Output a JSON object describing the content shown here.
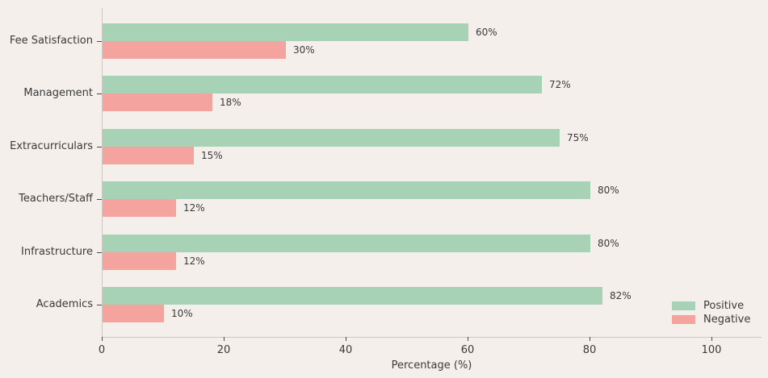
{
  "chart_data": {
    "type": "bar",
    "orientation": "horizontal",
    "title": "",
    "xlabel": "Percentage (%)",
    "ylabel": "",
    "categories": [
      "Fee Satisfaction",
      "Management",
      "Extracurriculars",
      "Teachers/Staff",
      "Infrastructure",
      "Academics"
    ],
    "series": [
      {
        "name": "Positive",
        "color": "#a7d2b6",
        "values": [
          60,
          72,
          75,
          80,
          80,
          82
        ]
      },
      {
        "name": "Negative",
        "color": "#f4a39e",
        "values": [
          30,
          18,
          15,
          12,
          12,
          10
        ]
      }
    ],
    "value_labels": {
      "Positive": [
        "60%",
        "72%",
        "75%",
        "80%",
        "80%",
        "82%"
      ],
      "Negative": [
        "30%",
        "18%",
        "15%",
        "12%",
        "12%",
        "10%"
      ]
    },
    "xticks": [
      "0",
      "20",
      "40",
      "60",
      "80",
      "100"
    ],
    "xtick_values": [
      0,
      20,
      40,
      60,
      80,
      100
    ],
    "xlim": [
      0,
      108
    ],
    "grid": false,
    "legend": {
      "position": "lower right",
      "entries": [
        {
          "label": "Positive",
          "color": "#a7d2b6"
        },
        {
          "label": "Negative",
          "color": "#f4a39e"
        }
      ]
    }
  },
  "colors": {
    "background": "#f4efea",
    "spine": "#ccc7c1",
    "tick": "#4a4a4a",
    "text": "#3a3a3a"
  }
}
